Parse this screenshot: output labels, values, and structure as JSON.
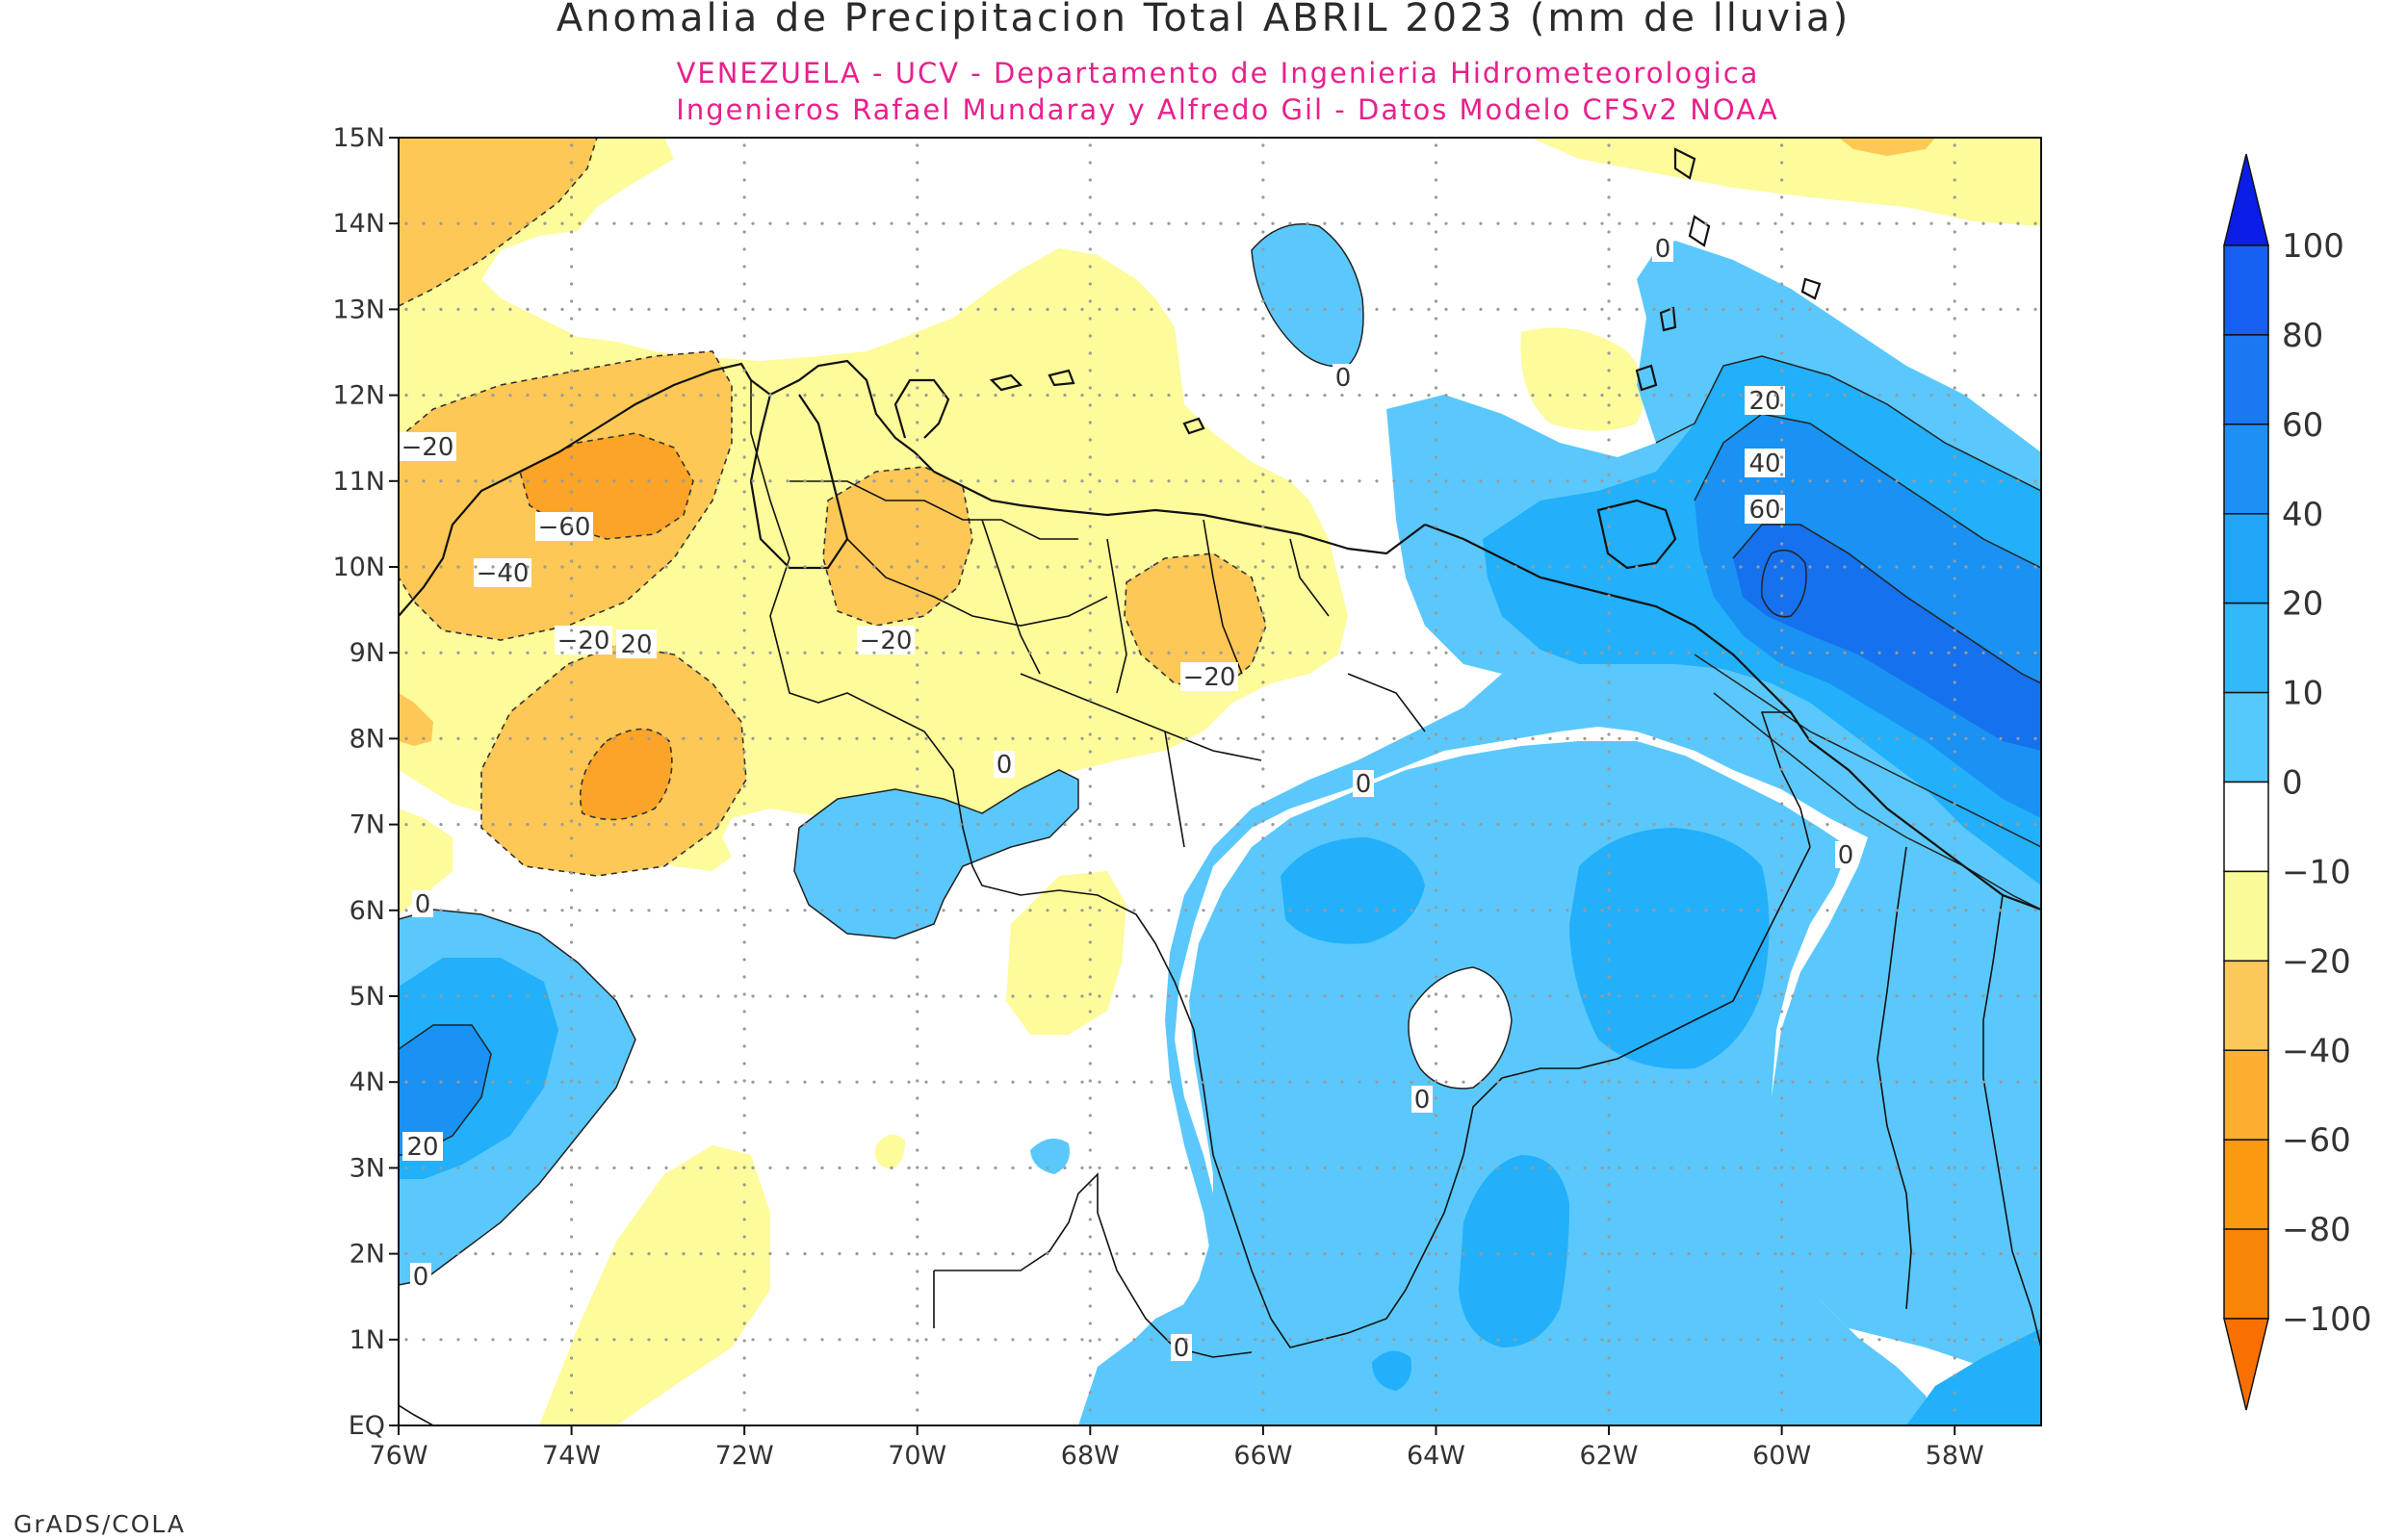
{
  "title": "Anomalia de Precipitacion Total ABRIL 2023 (mm de lluvia)",
  "subtitle1": "VENEZUELA - UCV - Departamento de Ingenieria Hidrometeorologica",
  "subtitle2": "Ingenieros Rafael Mundaray y Alfredo Gil - Datos Modelo CFSv2 NOAA",
  "credit": "GrADS/COLA",
  "lat_labels": [
    "15N",
    "14N",
    "13N",
    "12N",
    "11N",
    "10N",
    "9N",
    "8N",
    "7N",
    "6N",
    "5N",
    "4N",
    "3N",
    "2N",
    "1N",
    "EQ"
  ],
  "lon_labels": [
    "76W",
    "74W",
    "72W",
    "70W",
    "68W",
    "66W",
    "64W",
    "62W",
    "60W",
    "58W"
  ],
  "colorbar": {
    "labels": [
      "100",
      "80",
      "60",
      "40",
      "20",
      "10",
      "0",
      "-10",
      "-20",
      "-40",
      "-60",
      "-80",
      "-100"
    ],
    "colors": [
      "#0b1ee8",
      "#1560f0",
      "#1a78f2",
      "#1e90f5",
      "#21a6f7",
      "#33b8fa",
      "#55c8fc",
      "#ffffff",
      "#fbfa98",
      "#fdc85a",
      "#fbae30",
      "#fb9a10",
      "#fa8608",
      "#f97000"
    ]
  },
  "map_palette": {
    "blue_10": "#5ac8fc",
    "blue_20": "#22b0fa",
    "blue_40": "#1992f4",
    "blue_60": "#1571ee",
    "yellow_neg10": "#fdfb9a",
    "orange_neg20": "#fdc856",
    "orange_neg40": "#fba428"
  },
  "contour_labels": [
    "-20",
    "-60",
    "-40",
    "-20",
    "20",
    "-20",
    "-20",
    "0",
    "0",
    "0",
    "0",
    "0",
    "20",
    "40",
    "60",
    "0",
    "0",
    "20",
    "0",
    "0"
  ]
}
